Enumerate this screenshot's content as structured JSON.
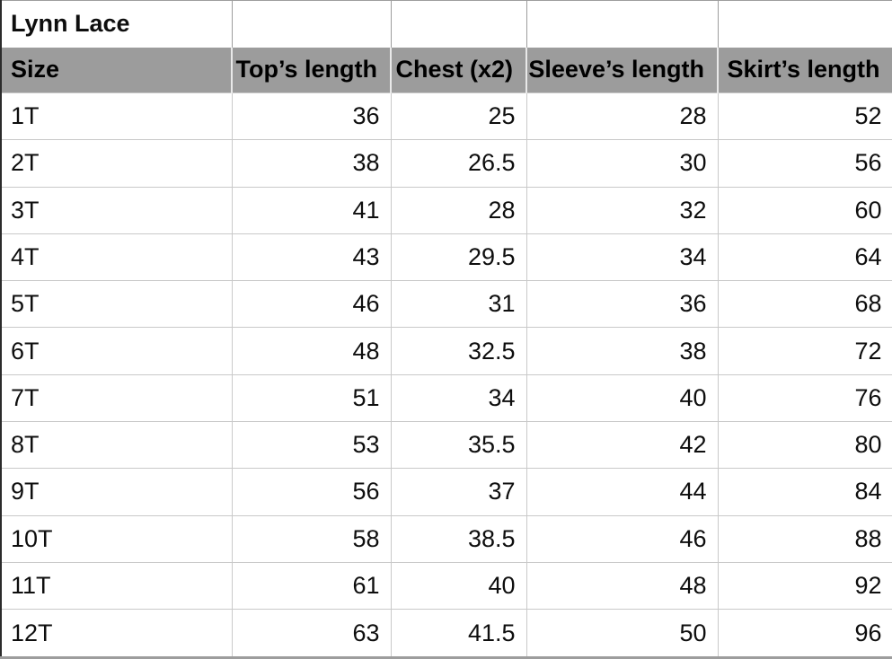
{
  "sheet_title": "Lynn Lace",
  "columns": [
    "Size",
    "Top’s length",
    "Chest (x2)",
    "Sleeve’s length",
    "Skirt’s length"
  ],
  "rows": [
    {
      "size": "1T",
      "values": [
        "36",
        "25",
        "28",
        "52"
      ]
    },
    {
      "size": "2T",
      "values": [
        "38",
        "26.5",
        "30",
        "56"
      ]
    },
    {
      "size": "3T",
      "values": [
        "41",
        "28",
        "32",
        "60"
      ]
    },
    {
      "size": "4T",
      "values": [
        "43",
        "29.5",
        "34",
        "64"
      ]
    },
    {
      "size": "5T",
      "values": [
        "46",
        "31",
        "36",
        "68"
      ]
    },
    {
      "size": "6T",
      "values": [
        "48",
        "32.5",
        "38",
        "72"
      ]
    },
    {
      "size": "7T",
      "values": [
        "51",
        "34",
        "40",
        "76"
      ]
    },
    {
      "size": "8T",
      "values": [
        "53",
        "35.5",
        "42",
        "80"
      ]
    },
    {
      "size": "9T",
      "values": [
        "56",
        "37",
        "44",
        "84"
      ]
    },
    {
      "size": "10T",
      "values": [
        "58",
        "38.5",
        "46",
        "88"
      ]
    },
    {
      "size": "11T",
      "values": [
        "61",
        "40",
        "48",
        "92"
      ]
    },
    {
      "size": "12T",
      "values": [
        "63",
        "41.5",
        "50",
        "96"
      ]
    }
  ],
  "colors": {
    "header_background": "#9c9c9c",
    "header_text": "#000000",
    "grid_border": "#c9c9c9",
    "title_separator": "#9d9d9d",
    "outer_left_border": "#2b2b2b",
    "body_text": "#0e0e0e",
    "cell_background": "#ffffff"
  }
}
